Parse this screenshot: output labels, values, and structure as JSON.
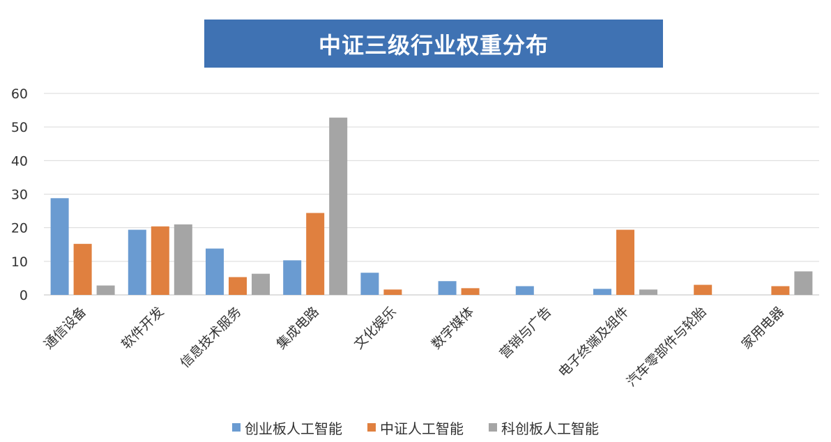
{
  "chart_data": {
    "type": "bar",
    "title": "中证三级行业权重分布",
    "categories": [
      "通信设备",
      "软件开发",
      "信息技术服务",
      "集成电路",
      "文化娱乐",
      "数字媒体",
      "营销与广告",
      "电子终端及组件",
      "汽车零部件与轮胎",
      "家用电器"
    ],
    "series": [
      {
        "name": "创业板人工智能",
        "color": "#6a9bd1",
        "values": [
          28.8,
          19.4,
          13.8,
          10.3,
          6.6,
          4.1,
          2.6,
          1.8,
          0,
          0
        ]
      },
      {
        "name": "中证人工智能",
        "color": "#e0803f",
        "values": [
          15.2,
          20.4,
          5.3,
          24.4,
          1.6,
          2.0,
          0,
          19.4,
          3.0,
          2.6
        ]
      },
      {
        "name": "科创板人工智能",
        "color": "#a5a5a5",
        "values": [
          2.8,
          21.0,
          6.3,
          52.8,
          0,
          0,
          0,
          1.6,
          0,
          7.0
        ]
      }
    ],
    "ylim": [
      0,
      60
    ],
    "yticks": [
      0,
      10,
      20,
      30,
      40,
      50,
      60
    ],
    "grid": true,
    "legend_position": "bottom",
    "title_background": "#3f72b3"
  }
}
